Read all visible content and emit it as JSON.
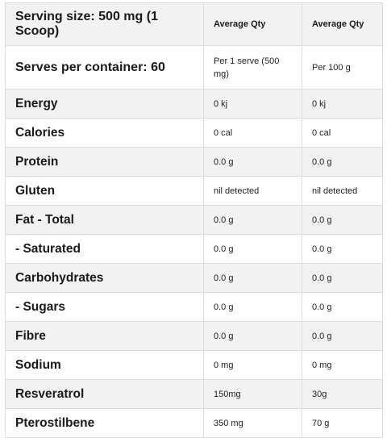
{
  "header": {
    "serving_size": "Serving size: 500 mg (1 Scoop)",
    "col_avg_1": "Average Qty",
    "col_avg_2": "Average Qty"
  },
  "serves": {
    "label": "Serves per container: 60",
    "per_serve": "Per 1 serve (500 mg)",
    "per_100g": "Per 100 g"
  },
  "rows": [
    {
      "name": "Energy",
      "per_serve": "0 kj",
      "per_100g": "0 kj"
    },
    {
      "name": "Calories",
      "per_serve": "0 cal",
      "per_100g": "0 cal"
    },
    {
      "name": "Protein",
      "per_serve": "0.0 g",
      "per_100g": "0.0 g"
    },
    {
      "name": "Gluten",
      "per_serve": "nil detected",
      "per_100g": "nil detected"
    },
    {
      "name": "Fat - Total",
      "per_serve": "0.0 g",
      "per_100g": "0.0 g"
    },
    {
      "name": "- Saturated",
      "per_serve": "0.0 g",
      "per_100g": "0.0 g"
    },
    {
      "name": "Carbohydrates",
      "per_serve": "0.0 g",
      "per_100g": "0.0 g"
    },
    {
      "name": "- Sugars",
      "per_serve": "0.0 g",
      "per_100g": "0.0 g"
    },
    {
      "name": "Fibre",
      "per_serve": "0.0 g",
      "per_100g": "0.0 g"
    },
    {
      "name": "Sodium",
      "per_serve": "0 mg",
      "per_100g": "0 mg"
    },
    {
      "name": "Resveratrol",
      "per_serve": "150mg",
      "per_100g": "30g"
    },
    {
      "name": "Pterostilbene",
      "per_serve": "350 mg",
      "per_100g": "70 g"
    }
  ]
}
